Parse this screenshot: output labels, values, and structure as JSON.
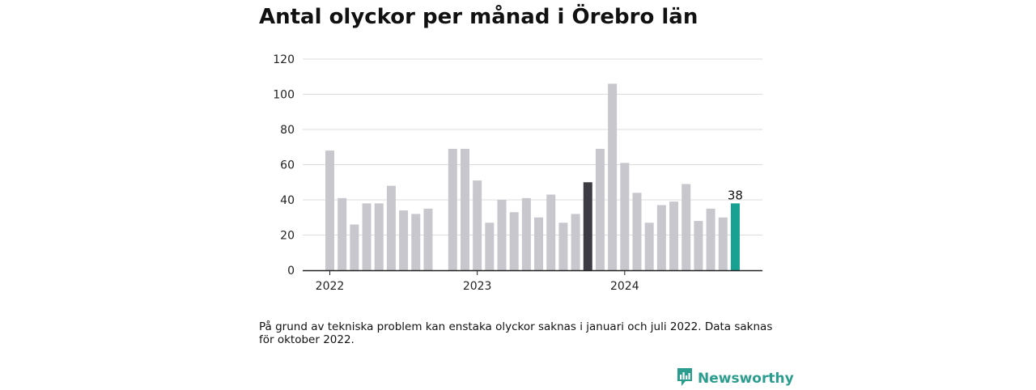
{
  "title": "Antal olyckor per månad i Örebro län",
  "note": "På grund av tekniska problem kan enstaka olyckor saknas i januari och juli 2022. Data saknas för oktober 2022.",
  "brand": {
    "name": "Newsworthy",
    "icon": "newsworthy-chart-icon",
    "color": "#2a9d8f"
  },
  "chart_data": {
    "type": "bar",
    "xlabel": "",
    "ylabel": "",
    "ylim": [
      0,
      120
    ],
    "yticks": [
      0,
      20,
      40,
      60,
      80,
      100,
      120
    ],
    "grid": true,
    "year_labels": [
      {
        "label": "2022",
        "at": "2022-01"
      },
      {
        "label": "2023",
        "at": "2023-01"
      },
      {
        "label": "2024",
        "at": "2024-01"
      }
    ],
    "categories": [
      "2022-01",
      "2022-02",
      "2022-03",
      "2022-04",
      "2022-05",
      "2022-06",
      "2022-07",
      "2022-08",
      "2022-09",
      "2022-10",
      "2022-11",
      "2022-12",
      "2023-01",
      "2023-02",
      "2023-03",
      "2023-04",
      "2023-05",
      "2023-06",
      "2023-07",
      "2023-08",
      "2023-09",
      "2023-10",
      "2023-11",
      "2023-12",
      "2024-01",
      "2024-02",
      "2024-03",
      "2024-04",
      "2024-05",
      "2024-06",
      "2024-07",
      "2024-08",
      "2024-09",
      "2024-10"
    ],
    "values": [
      68,
      41,
      26,
      38,
      38,
      48,
      34,
      32,
      35,
      null,
      69,
      69,
      51,
      27,
      40,
      33,
      41,
      30,
      43,
      27,
      32,
      50,
      69,
      106,
      61,
      44,
      27,
      37,
      39,
      49,
      28,
      35,
      30,
      38
    ],
    "colors": {
      "default": "#c8c7ce",
      "highlight_dark": "#3d3c45",
      "highlight_current": "#17a192"
    },
    "highlights": {
      "2023-10": "highlight_dark",
      "2024-10": "highlight_current"
    },
    "data_labels": [
      {
        "category": "2024-10",
        "text": "38"
      }
    ]
  }
}
